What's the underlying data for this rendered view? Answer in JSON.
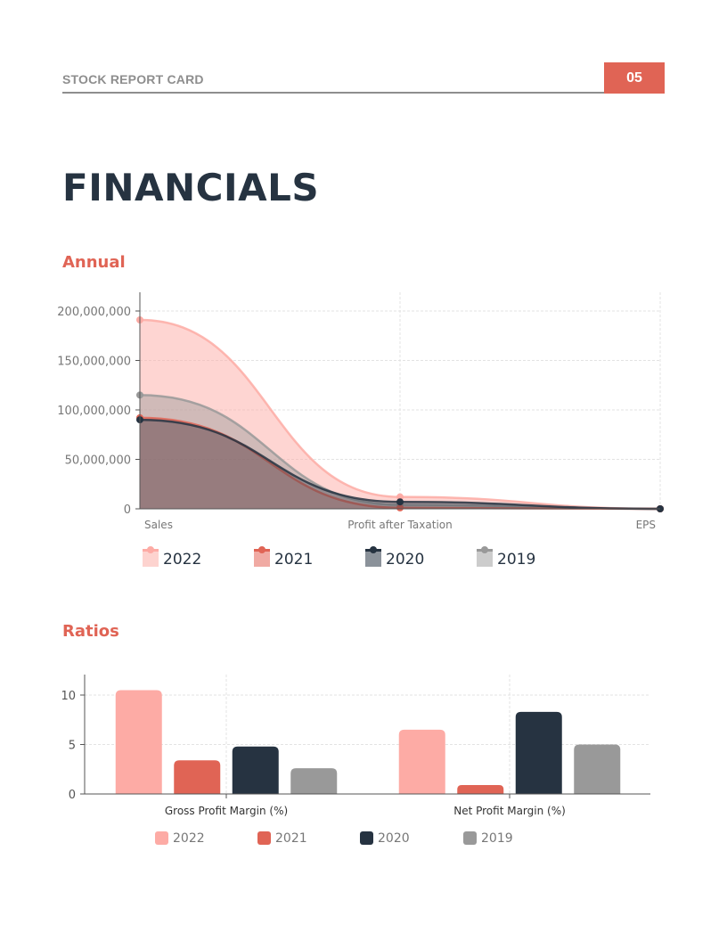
{
  "header": {
    "title": "STOCK REPORT CARD",
    "page_number": "05"
  },
  "page": {
    "title": "FINANCIALS"
  },
  "sections": {
    "annual": "Annual",
    "ratios": "Ratios"
  },
  "colors": {
    "accent": "#e06455",
    "dark": "#263341",
    "gray": "#8e8e8e",
    "s2022": "#fdaba5",
    "s2021": "#e06455",
    "s2020": "#263341",
    "s2019": "#999999"
  },
  "chart_data": [
    {
      "type": "area",
      "title": "Annual",
      "categories": [
        "Sales",
        "Profit after Taxation",
        "EPS"
      ],
      "yticks": [
        "0",
        "50,000,000",
        "100,000,000",
        "150,000,000",
        "200,000,000"
      ],
      "ylim": [
        0,
        220000000
      ],
      "grid": true,
      "legend_position": "bottom",
      "series": [
        {
          "name": "2022",
          "values": [
            191000000,
            12000000,
            0
          ]
        },
        {
          "name": "2021",
          "values": [
            92000000,
            1000000,
            0
          ]
        },
        {
          "name": "2020",
          "values": [
            90000000,
            7000000,
            0
          ]
        },
        {
          "name": "2019",
          "values": [
            115000000,
            4000000,
            0
          ]
        }
      ]
    },
    {
      "type": "bar",
      "title": "Ratios",
      "categories": [
        "Gross Profit Margin (%)",
        "Net Profit Margin (%)"
      ],
      "yticks": [
        "0",
        "5",
        "10"
      ],
      "ylim": [
        0,
        12
      ],
      "grid": true,
      "legend_position": "bottom",
      "series": [
        {
          "name": "2022",
          "values": [
            10.5,
            6.5
          ]
        },
        {
          "name": "2021",
          "values": [
            3.4,
            0.9
          ]
        },
        {
          "name": "2020",
          "values": [
            4.8,
            8.3
          ]
        },
        {
          "name": "2019",
          "values": [
            2.6,
            5.0
          ]
        }
      ]
    }
  ]
}
